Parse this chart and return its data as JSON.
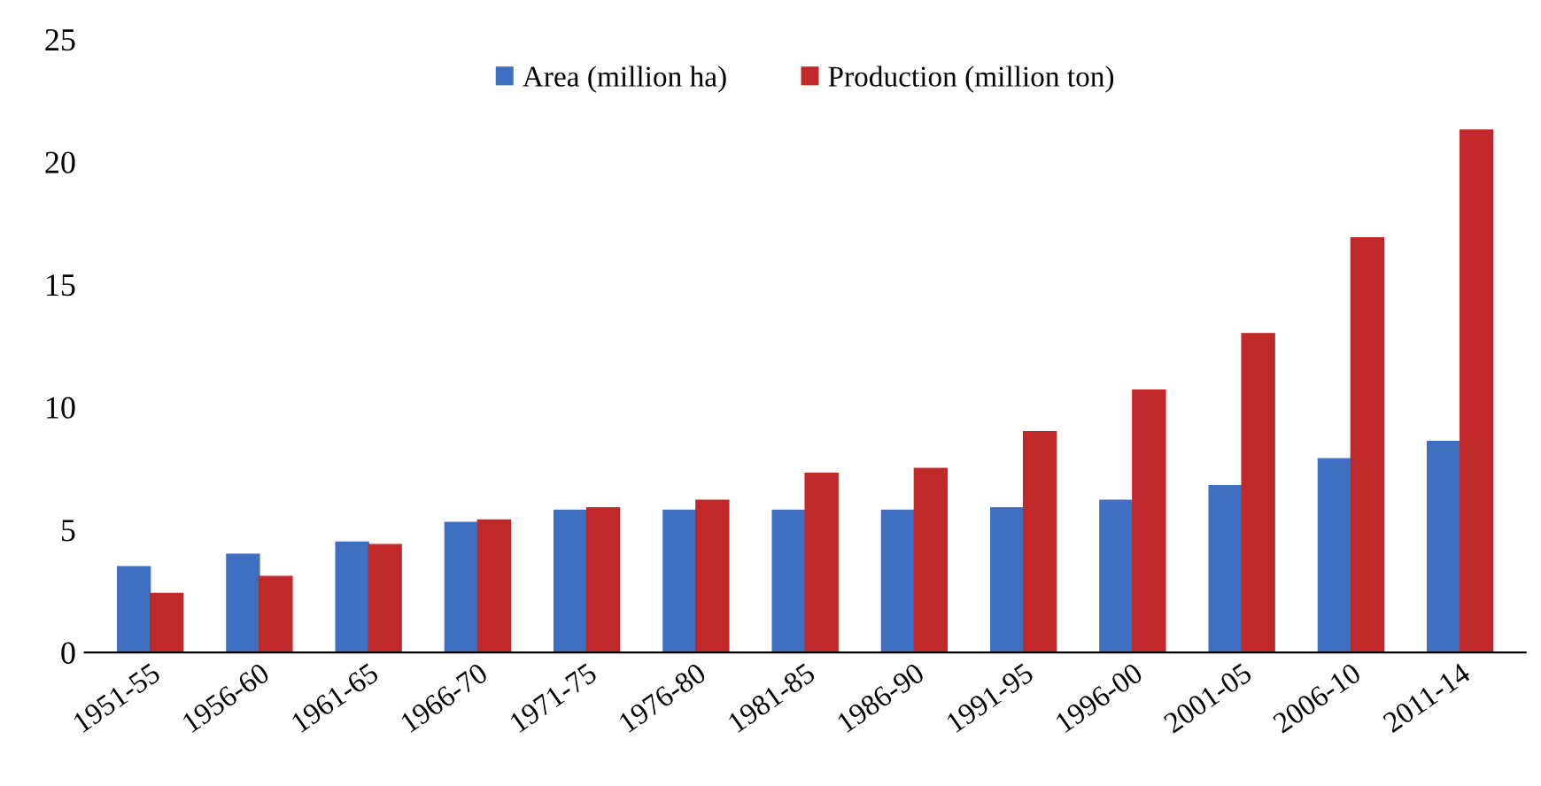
{
  "chart_data": {
    "type": "bar",
    "categories": [
      "1951-55",
      "1956-60",
      "1961-65",
      "1966-70",
      "1971-75",
      "1976-80",
      "1981-85",
      "1986-90",
      "1991-95",
      "1996-00",
      "2001-05",
      "2006-10",
      "2011-14"
    ],
    "series": [
      {
        "name": "Area (million ha)",
        "color": "#3f6fc0",
        "values": [
          3.5,
          4.0,
          4.5,
          5.3,
          5.8,
          5.8,
          5.8,
          5.8,
          5.9,
          6.2,
          6.8,
          7.9,
          8.6
        ]
      },
      {
        "name": "Production (million ton)",
        "color": "#c0282a",
        "values": [
          2.4,
          3.1,
          4.4,
          5.4,
          5.9,
          6.2,
          7.3,
          7.5,
          9.0,
          10.7,
          13.0,
          16.9,
          21.3
        ]
      }
    ],
    "ylim": [
      0,
      25
    ],
    "yticks": [
      0,
      5,
      10,
      15,
      20,
      25
    ],
    "grid": false,
    "legend": "top"
  }
}
